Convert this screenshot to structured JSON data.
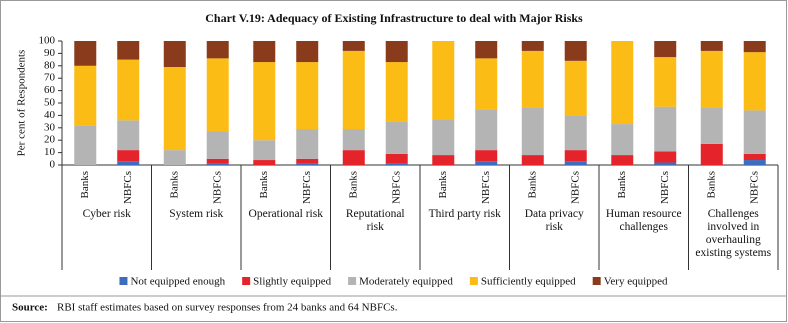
{
  "chart_data": {
    "type": "stacked-bar",
    "title": "Chart V.19: Adequacy of Existing Infrastructure to deal with Major Risks",
    "y_label": "Per cent of Respondents",
    "categories": [
      "Banks",
      "NBFCs",
      "Banks",
      "NBFCs",
      "Banks",
      "NBFCs",
      "Banks",
      "NBFCs",
      "Banks",
      "NBFCs",
      "Banks",
      "NBFCs",
      "Banks",
      "NBFCs",
      "Banks",
      "NBFCs"
    ],
    "groups": [
      "Cyber risk",
      "System risk",
      "Operational risk",
      "Reputational risk",
      "Third party risk",
      "Data privacy risk",
      "Human resource challenges",
      "Challenges involved in overhauling existing systems"
    ],
    "series": [
      {
        "name": "Not equipped enough",
        "color": "#3d6dbf",
        "values": [
          0,
          3,
          0,
          1,
          0,
          1,
          0,
          1,
          0,
          3,
          0,
          3,
          0,
          2,
          0,
          4
        ]
      },
      {
        "name": "Slightly equipped",
        "color": "#e4232a",
        "values": [
          0,
          9,
          0,
          4,
          4,
          4,
          12,
          8,
          8,
          9,
          8,
          9,
          8,
          9,
          17,
          5
        ]
      },
      {
        "name": "Moderately equipped",
        "color": "#b4b4b4",
        "values": [
          32,
          24,
          12,
          22,
          16,
          24,
          17,
          26,
          29,
          33,
          38,
          28,
          25,
          36,
          29,
          35
        ]
      },
      {
        "name": "Sufficiently equipped",
        "color": "#fbbc15",
        "values": [
          48,
          49,
          67,
          59,
          63,
          54,
          63,
          48,
          63,
          41,
          46,
          44,
          67,
          40,
          46,
          47
        ]
      },
      {
        "name": "Very equipped",
        "color": "#8a3b1b",
        "values": [
          20,
          15,
          21,
          14,
          17,
          17,
          8,
          17,
          0,
          14,
          8,
          16,
          0,
          13,
          8,
          9
        ]
      }
    ],
    "ylim": [
      0,
      100
    ],
    "yticks": [
      0,
      10,
      20,
      30,
      40,
      50,
      60,
      70,
      80,
      90,
      100
    ],
    "source_label": "Source:",
    "source": "RBI staff estimates based on survey responses from 24 banks and 64 NBFCs."
  }
}
